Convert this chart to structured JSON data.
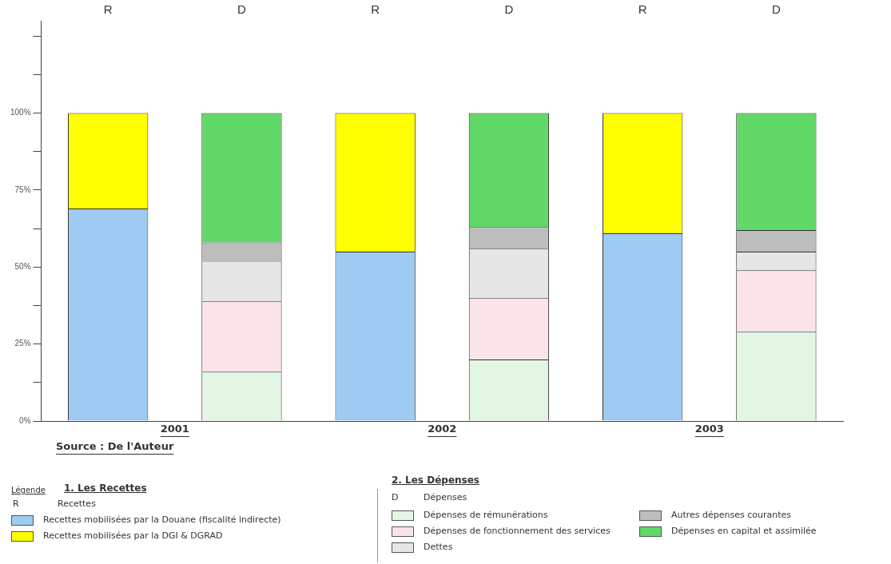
{
  "chart_data": {
    "type": "bar",
    "stacked": true,
    "categories": [
      "R",
      "D",
      "R",
      "D",
      "R",
      "D"
    ],
    "ylim": [
      0,
      130
    ],
    "yticks": [
      {
        "value": 0,
        "label": "0%"
      },
      {
        "value": 12.5,
        "label": null
      },
      {
        "value": 25,
        "label": "25%"
      },
      {
        "value": 37.5,
        "label": null
      },
      {
        "value": 50,
        "label": "50%"
      },
      {
        "value": 62.5,
        "label": null
      },
      {
        "value": 75,
        "label": "75%"
      },
      {
        "value": 87.5,
        "label": null
      },
      {
        "value": 100,
        "label": "100%"
      },
      {
        "value": 112.5,
        "label": null
      },
      {
        "value": 125,
        "label": null
      }
    ],
    "grid": false,
    "legend": "bottom",
    "legend_title": "Légende",
    "series": [
      {
        "name": "Recettes mobilisées par la Douane (fiscalité indirecte)",
        "color": "#9fcbf2",
        "values": [
          69,
          null,
          55,
          null,
          61,
          null
        ]
      },
      {
        "name": "Recettes mobilisées par la DGI & DGRAD",
        "color": "#ffff00",
        "values": [
          31,
          null,
          45,
          null,
          39,
          null
        ]
      },
      {
        "name": "Dépenses de rémunérations",
        "color": "#e3f5e3",
        "values": [
          null,
          16,
          null,
          20,
          null,
          29
        ]
      },
      {
        "name": "Dépenses de fonctionnement des services",
        "color": "#fbe4e8",
        "values": [
          null,
          23,
          null,
          20,
          null,
          20
        ]
      },
      {
        "name": "Dettes",
        "color": "#e6e6e6",
        "values": [
          null,
          13,
          null,
          16,
          null,
          6
        ]
      },
      {
        "name": "Autres  dépenses courantes",
        "color": "#bdbdbd",
        "values": [
          null,
          6,
          null,
          7,
          null,
          7
        ]
      },
      {
        "name": "Dépenses en capital et assimilée",
        "color": "#62d868",
        "values": [
          null,
          42,
          null,
          37,
          null,
          38
        ]
      }
    ],
    "annotations": [
      "2001",
      "2002",
      "2003",
      "Source : De l'Auteur",
      "1. Les Recettes",
      "R",
      "Recettes",
      "2. Les Dépenses",
      "D",
      "Dépenses"
    ]
  }
}
